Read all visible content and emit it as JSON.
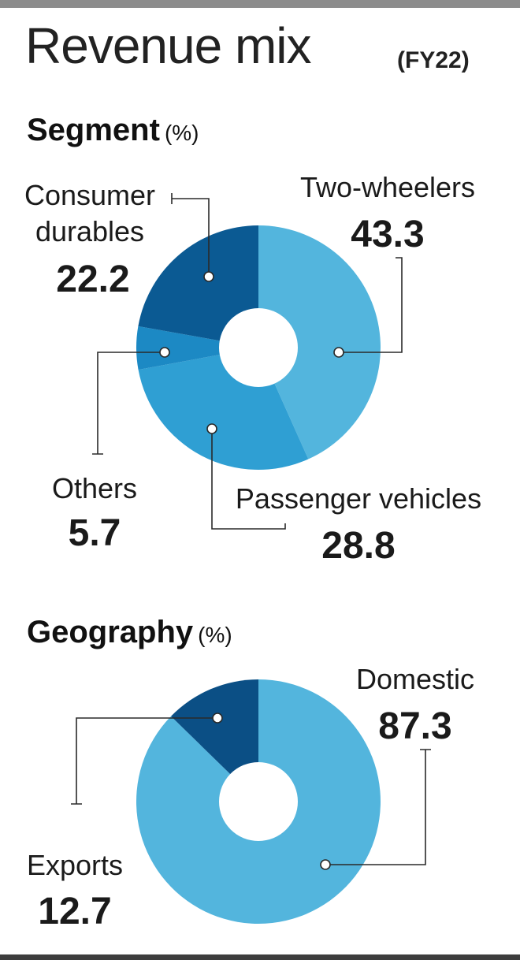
{
  "title": "Revenue mix",
  "period": "(FY22)",
  "colors": {
    "light": "#53b5dd",
    "mid": "#2f9fd3",
    "dark": "#0b5a93",
    "darker": "#0b4f85"
  },
  "chart_data": [
    {
      "type": "pie",
      "title": "Segment",
      "unit": "(%)",
      "categories": [
        "Two-wheelers",
        "Passenger vehicles",
        "Others",
        "Consumer durables"
      ],
      "values": [
        43.3,
        28.8,
        5.7,
        22.2
      ],
      "value_labels": [
        "43.3",
        "28.8",
        "5.7",
        "22.2"
      ],
      "label_lines": [
        [
          "Two-wheelers"
        ],
        [
          "Passenger vehicles"
        ],
        [
          "Others"
        ],
        [
          "Consumer",
          "durables"
        ]
      ],
      "colors": [
        "#53b5dd",
        "#2f9fd3",
        "#1c89c4",
        "#0b5a93"
      ]
    },
    {
      "type": "pie",
      "title": "Geography",
      "unit": "(%)",
      "categories": [
        "Domestic",
        "Exports"
      ],
      "values": [
        87.3,
        12.7
      ],
      "value_labels": [
        "87.3",
        "12.7"
      ],
      "label_lines": [
        [
          "Domestic"
        ],
        [
          "Exports"
        ]
      ],
      "colors": [
        "#53b5dd",
        "#0b4f85"
      ]
    }
  ]
}
